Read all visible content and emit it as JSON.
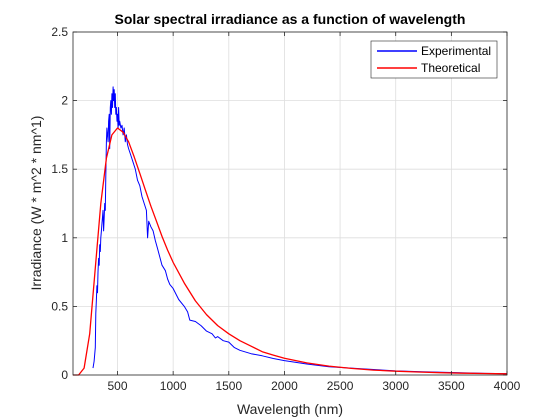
{
  "chart_data": {
    "type": "line",
    "title": "Solar spectral irradiance as a function of wavelength",
    "xlabel": "Wavelength (nm)",
    "ylabel": "Irradiance (W * m^2 * nm^1)",
    "xlim": [
      100,
      4000
    ],
    "ylim": [
      0,
      2.5
    ],
    "xticks": [
      500,
      1000,
      1500,
      2000,
      2500,
      3000,
      3500,
      4000
    ],
    "xtick_labels": [
      "500",
      "1000",
      "1500",
      "2000",
      "2500",
      "3000",
      "3500",
      "4000"
    ],
    "yticks": [
      0,
      0.5,
      1,
      1.5,
      2,
      2.5
    ],
    "ytick_labels": [
      "0",
      "0.5",
      "1",
      "1.5",
      "2",
      "2.5"
    ],
    "grid": true,
    "legend_position": "top-right",
    "series": [
      {
        "name": "Experimental",
        "color": "#0000ff",
        "x": [
          280,
          290,
          300,
          305,
          310,
          315,
          320,
          325,
          330,
          335,
          340,
          345,
          350,
          355,
          360,
          365,
          370,
          375,
          380,
          385,
          390,
          395,
          400,
          405,
          410,
          415,
          420,
          425,
          430,
          435,
          440,
          445,
          450,
          455,
          460,
          465,
          470,
          475,
          480,
          485,
          490,
          495,
          500,
          505,
          510,
          515,
          520,
          530,
          540,
          550,
          560,
          570,
          580,
          590,
          600,
          620,
          640,
          660,
          680,
          700,
          720,
          740,
          760,
          770,
          780,
          800,
          820,
          840,
          860,
          880,
          900,
          930,
          950,
          970,
          1000,
          1050,
          1100,
          1130,
          1150,
          1200,
          1250,
          1300,
          1350,
          1380,
          1400,
          1450,
          1500,
          1550,
          1600,
          1700,
          1800,
          1900,
          2000,
          2200,
          2400,
          2600,
          2800,
          3000,
          3200,
          3500,
          3800,
          4000
        ],
        "y": [
          0.05,
          0.1,
          0.2,
          0.45,
          0.55,
          0.65,
          0.6,
          0.75,
          0.85,
          0.8,
          0.95,
          0.9,
          1.0,
          1.05,
          1.1,
          1.15,
          1.2,
          1.05,
          1.15,
          1.25,
          1.2,
          1.45,
          1.7,
          1.8,
          1.75,
          1.7,
          1.85,
          1.9,
          1.65,
          1.95,
          2.0,
          1.9,
          2.05,
          1.95,
          2.1,
          2.0,
          2.08,
          1.95,
          2.05,
          1.9,
          1.95,
          1.85,
          1.9,
          1.8,
          1.95,
          1.82,
          1.85,
          1.8,
          1.82,
          1.75,
          1.8,
          1.7,
          1.75,
          1.68,
          1.65,
          1.6,
          1.55,
          1.5,
          1.42,
          1.38,
          1.3,
          1.25,
          1.2,
          1.0,
          1.12,
          1.08,
          1.05,
          0.98,
          0.92,
          0.86,
          0.8,
          0.76,
          0.7,
          0.66,
          0.63,
          0.55,
          0.5,
          0.46,
          0.4,
          0.39,
          0.36,
          0.32,
          0.3,
          0.27,
          0.28,
          0.25,
          0.24,
          0.2,
          0.18,
          0.155,
          0.14,
          0.12,
          0.105,
          0.08,
          0.06,
          0.05,
          0.04,
          0.03,
          0.025,
          0.018,
          0.012,
          0.01
        ]
      },
      {
        "name": "Theoretical",
        "color": "#ff0000",
        "x": [
          100,
          150,
          200,
          250,
          300,
          350,
          400,
          450,
          500,
          550,
          600,
          650,
          700,
          750,
          800,
          850,
          900,
          950,
          1000,
          1100,
          1200,
          1300,
          1400,
          1500,
          1600,
          1700,
          1800,
          1900,
          2000,
          2200,
          2400,
          2600,
          2800,
          3000,
          3200,
          3400,
          3600,
          3800,
          4000
        ],
        "y": [
          0.0,
          0.0,
          0.05,
          0.3,
          0.78,
          1.25,
          1.58,
          1.75,
          1.8,
          1.77,
          1.7,
          1.59,
          1.47,
          1.35,
          1.23,
          1.12,
          1.01,
          0.91,
          0.82,
          0.67,
          0.54,
          0.44,
          0.36,
          0.3,
          0.25,
          0.21,
          0.17,
          0.145,
          0.122,
          0.088,
          0.065,
          0.048,
          0.036,
          0.028,
          0.022,
          0.017,
          0.013,
          0.011,
          0.009
        ]
      }
    ]
  }
}
